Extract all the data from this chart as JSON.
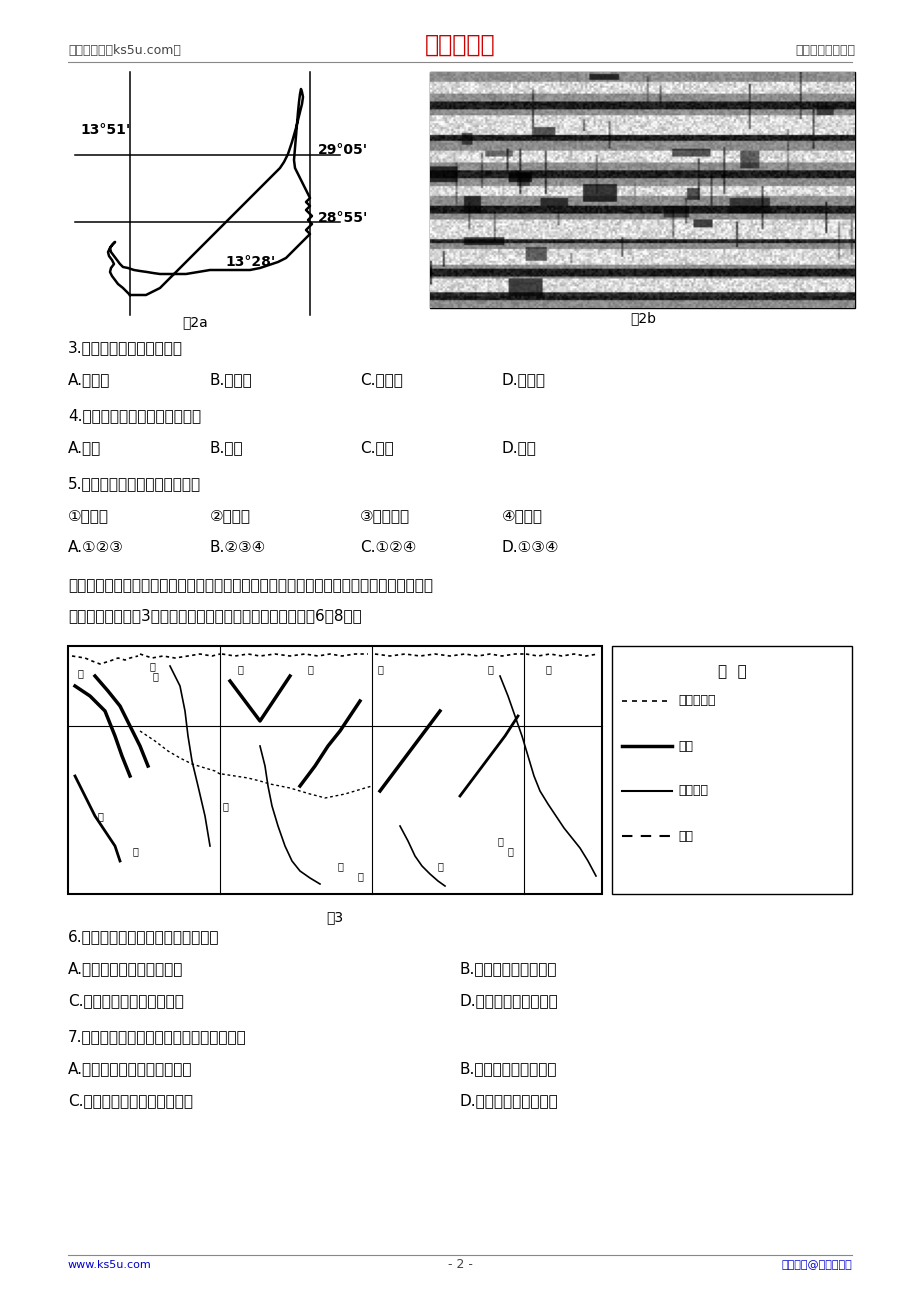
{
  "header_left": "高考资源网（ks5u.com）",
  "header_center": "高考资源网",
  "header_right": "您身边的高考专家",
  "footer_left": "www.ks5u.com",
  "footer_center": "- 2 -",
  "footer_right": "版权所有@高考资源网",
  "fig2a_label": "图2a",
  "fig2b_label": "图2b",
  "fig3_label": "图3",
  "map_labels": {
    "lon_left": "13°51'",
    "lon_right": "13°28'",
    "lat_top": "29°05'",
    "lat_bottom": "28°55'"
  },
  "legend_title": "图  例",
  "legend_items": [
    "水系分水岭",
    "山脉",
    "高速公路",
    "铁路"
  ],
  "q3_text": "3.图中半圆形石墙一般朝向",
  "q3_opts": [
    "A.东北方",
    "B.西北方",
    "C.东南方",
    "D.西南方"
  ],
  "q4_text": "4.图中半圆形石墙最根本目的是",
  "q4_opts": [
    "A.防风",
    "B.固沙",
    "C.护土",
    "D.保水"
  ],
  "q5_text": "5.到该岛旅游的游客，可观赏到",
  "q5_sub": [
    "①葡萄园",
    "②仙人掌",
    "③常绿雨林",
    "④火山口"
  ],
  "q5_opts": [
    "A.①②③",
    "B.②③④",
    "C.①②④",
    "D.①③④"
  ],
  "paragraph1": "　　东西向的南岭，由多条近似南北向的山岭组成，有山不连脉。分水岭低矮狭窄，局部有",
  "paragraph2": "向北移的趋势。图3为南岭地区山脉、河流分布图。据此完成6～8题。",
  "q6_text": "6.推测南岭有山不连脉的主要原因是",
  "q6_opts_left": [
    "A.先后不同方向的挤压运动",
    "C.地质时期冰川侵蚀作用强"
  ],
  "q6_opts_right": [
    "B.岩石疏松风化的结果",
    "D.流水侵蚀切割作用强"
  ],
  "q7_text": "7.南岭的分水岭局部有向北移的趋势是因为",
  "q7_opts_left": [
    "A.北坡岩石坚硬，不易被侵蚀",
    "C.北坡植被茂密，坡面侵蚀弱"
  ],
  "q7_opts_right": [
    "B.南坡河流溯源侵蚀强",
    "D.南坡水多坡面侵蚀强"
  ],
  "bg_color": "#ffffff",
  "header_color": "#cc0000",
  "footer_link_color": "#0000cc"
}
